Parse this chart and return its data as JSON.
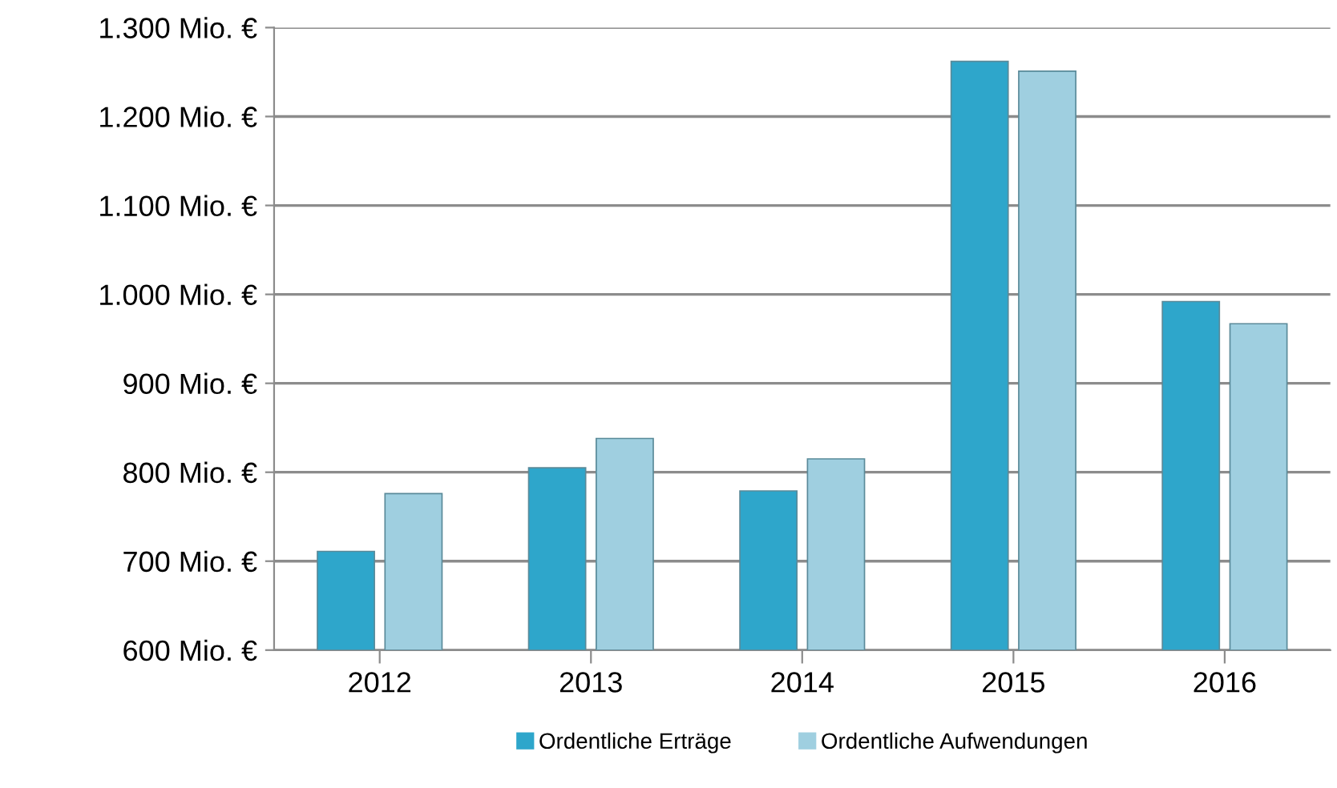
{
  "chart_data": {
    "type": "bar",
    "categories": [
      "2012",
      "2013",
      "2014",
      "2015",
      "2016"
    ],
    "series": [
      {
        "name": "Ordentliche Erträge",
        "color": "#2ea6cb",
        "values": [
          711,
          805,
          779,
          1262,
          992
        ]
      },
      {
        "name": "Ordentliche Aufwendungen",
        "color": "#9fcfe0",
        "values": [
          776,
          838,
          815,
          1251,
          967
        ]
      }
    ],
    "ylim": [
      600,
      1300
    ],
    "yticks": [
      {
        "value": 600,
        "label": "600 Mio. €"
      },
      {
        "value": 700,
        "label": "700 Mio. €"
      },
      {
        "value": 800,
        "label": "800 Mio. €"
      },
      {
        "value": 900,
        "label": "900 Mio. €"
      },
      {
        "value": 1000,
        "label": "1.000 Mio. €"
      },
      {
        "value": 1100,
        "label": "1.100 Mio. €"
      },
      {
        "value": 1200,
        "label": "1.200 Mio. €"
      },
      {
        "value": 1300,
        "label": "1.300 Mio. €"
      }
    ],
    "grid": "y",
    "legend": "bottom"
  }
}
